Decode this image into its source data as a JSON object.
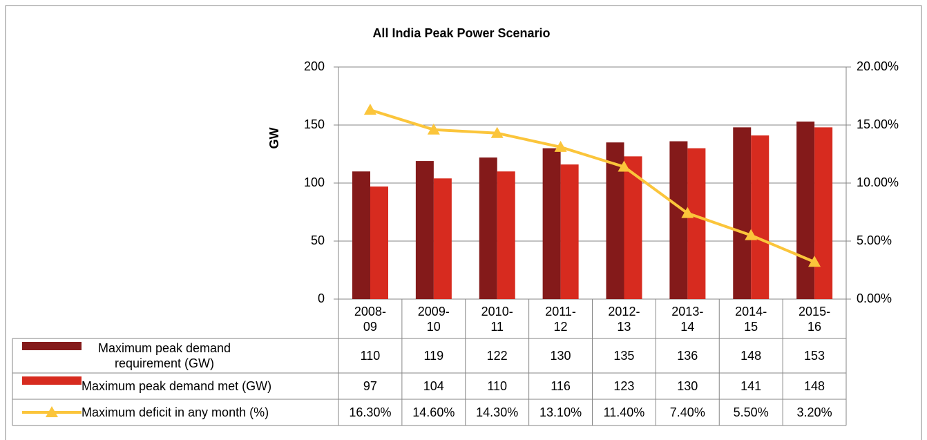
{
  "chart_data": {
    "type": "bar",
    "title": "All India Peak Power Scenario",
    "y_label": "GW",
    "categories": [
      "2008-09",
      "2009-10",
      "2010-11",
      "2011-12",
      "2012-13",
      "2013-14",
      "2014-15",
      "2015-16"
    ],
    "series": [
      {
        "name": "Maximum peak demand requirement (GW)",
        "type": "bar",
        "color": "#841a1a",
        "values": [
          110,
          119,
          122,
          130,
          135,
          136,
          148,
          153
        ]
      },
      {
        "name": "Maximum peak demand met (GW)",
        "type": "bar",
        "color": "#d72b1f",
        "values": [
          97,
          104,
          110,
          116,
          123,
          130,
          141,
          148
        ]
      },
      {
        "name": "Maximum deficit in any month (%)",
        "type": "line",
        "axis": "y2",
        "color": "#fbc53b",
        "values": [
          16.3,
          14.6,
          14.3,
          13.1,
          11.4,
          7.4,
          5.5,
          3.2
        ],
        "value_labels": [
          "16.30%",
          "14.60%",
          "14.30%",
          "13.10%",
          "11.40%",
          "7.40%",
          "5.50%",
          "3.20%"
        ]
      }
    ],
    "ylim": [
      0,
      200
    ],
    "yticks": [
      0,
      50,
      100,
      150,
      200
    ],
    "y2lim": [
      0,
      20
    ],
    "y2ticks": [
      {
        "value": 0,
        "label": "0.00%"
      },
      {
        "value": 5,
        "label": "5.00%"
      },
      {
        "value": 10,
        "label": "10.00%"
      },
      {
        "value": 15,
        "label": "15.00%"
      },
      {
        "value": 20,
        "label": "20.00%"
      }
    ],
    "grid": true,
    "data_table": true
  }
}
